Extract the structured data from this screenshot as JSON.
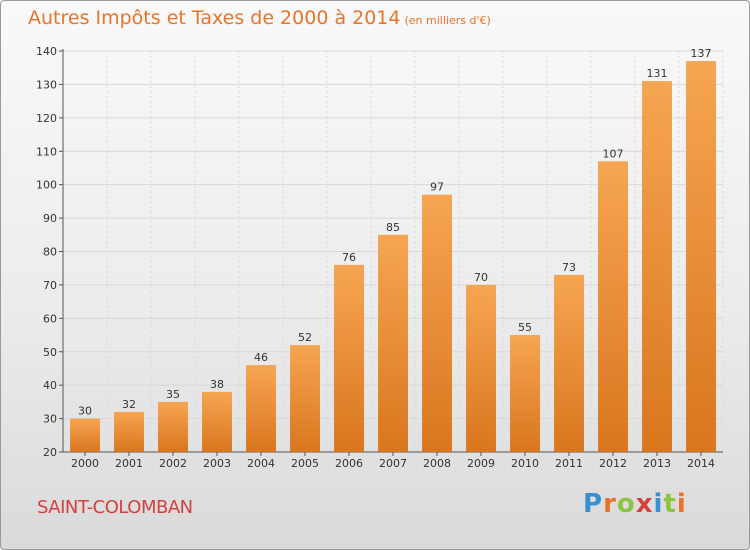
{
  "title": "Autres Impôts et Taxes de 2000 à 2014",
  "unit": "(en milliers d'€)",
  "commune": "SAINT-COLOMBAN",
  "logo": {
    "letters": [
      "P",
      "r",
      "o",
      "x",
      "i",
      "t",
      "i"
    ],
    "colors": [
      "#3a8fd0",
      "#e8742c",
      "#8cc63f",
      "#d44040",
      "#3a8fd0",
      "#8cc63f",
      "#e8742c"
    ]
  },
  "colors": {
    "title": "#e8742c",
    "bar_light": "#f6a552",
    "bar_dark": "#d9761e",
    "commune": "#d44040"
  },
  "chart_data": {
    "type": "bar",
    "title": "Autres Impôts et Taxes de 2000 à 2014",
    "ylabel": "(en milliers d'€)",
    "xlabel": "",
    "categories": [
      "2000",
      "2001",
      "2002",
      "2003",
      "2004",
      "2005",
      "2006",
      "2007",
      "2008",
      "2009",
      "2010",
      "2011",
      "2012",
      "2013",
      "2014"
    ],
    "values": [
      30,
      32,
      35,
      38,
      46,
      52,
      76,
      85,
      97,
      70,
      55,
      73,
      107,
      131,
      137
    ],
    "ylim": [
      20,
      140
    ],
    "yticks": [
      20,
      30,
      40,
      50,
      60,
      70,
      80,
      90,
      100,
      110,
      120,
      130,
      140
    ],
    "grid": true,
    "legend": "none"
  }
}
